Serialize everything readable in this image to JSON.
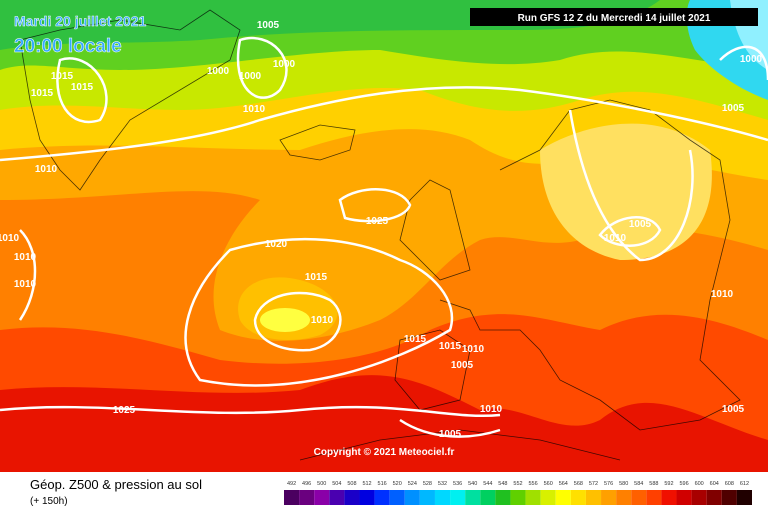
{
  "header": {
    "date": "Mardi 20 juillet 2021",
    "time": "20:00 locale",
    "run": "Run GFS 12 Z du Mercredi 14 juillet 2021"
  },
  "copyright": "Copyright © 2021 Meteociel.fr",
  "legend": {
    "title": "Géop. Z500 & pression au sol",
    "lead": "(+ 150h)",
    "scale": [
      492,
      496,
      500,
      504,
      508,
      512,
      516,
      520,
      524,
      528,
      532,
      536,
      540,
      544,
      548,
      552,
      556,
      560,
      564,
      568,
      572,
      576,
      580,
      584,
      588,
      592,
      596,
      600,
      604,
      608,
      612
    ],
    "colors": [
      "#4b0060",
      "#6a007f",
      "#8a00a8",
      "#4a00b0",
      "#1a00c8",
      "#0000e0",
      "#0030ff",
      "#0060ff",
      "#0090ff",
      "#00b8ff",
      "#00d8ff",
      "#00f0f0",
      "#00e0a0",
      "#00d060",
      "#20c020",
      "#60d000",
      "#a0e000",
      "#d8f000",
      "#ffff00",
      "#ffe000",
      "#ffc000",
      "#ffa000",
      "#ff8000",
      "#ff6000",
      "#ff4000",
      "#f01000",
      "#d00000",
      "#a80000",
      "#800000",
      "#500000",
      "#200000"
    ]
  },
  "isobar_labels": [
    1005,
    1000,
    1000,
    1000,
    1015,
    1015,
    1015,
    1010,
    1010,
    1025,
    1020,
    1015,
    1010,
    1010,
    1010,
    1010,
    1015,
    1015,
    1010,
    1005,
    1025,
    1010,
    1005,
    1000,
    1005,
    1005,
    1010,
    1010,
    1005
  ]
}
